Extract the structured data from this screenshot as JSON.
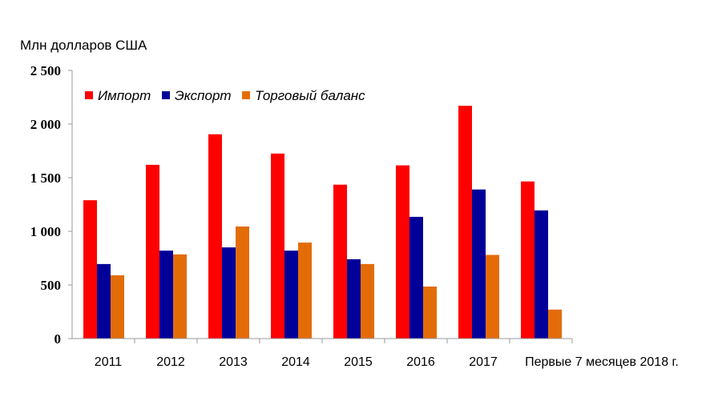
{
  "chart_data": {
    "type": "bar",
    "ylabel": "Млн долларов США",
    "ylim": [
      0,
      2500
    ],
    "yticks": [
      0,
      500,
      1000,
      1500,
      2000,
      2500
    ],
    "ytick_labels": [
      "0",
      "500",
      "1 000",
      "1 500",
      "2 000",
      "2 500"
    ],
    "categories": [
      "2011",
      "2012",
      "2013",
      "2014",
      "2015",
      "2016",
      "2017",
      "Первые 7 месяцев 2018 г."
    ],
    "legend_position": "top-left",
    "grid": false,
    "series": [
      {
        "name": "Импорт",
        "color": "#ff0000",
        "values": [
          1290,
          1620,
          1905,
          1725,
          1435,
          1615,
          2170,
          1465
        ]
      },
      {
        "name": "Экспорт",
        "color": "#000099",
        "values": [
          695,
          820,
          850,
          820,
          740,
          1135,
          1390,
          1195
        ]
      },
      {
        "name": "Торговый баланс",
        "color": "#e36c09",
        "values": [
          590,
          785,
          1045,
          895,
          695,
          485,
          780,
          270
        ]
      }
    ]
  }
}
